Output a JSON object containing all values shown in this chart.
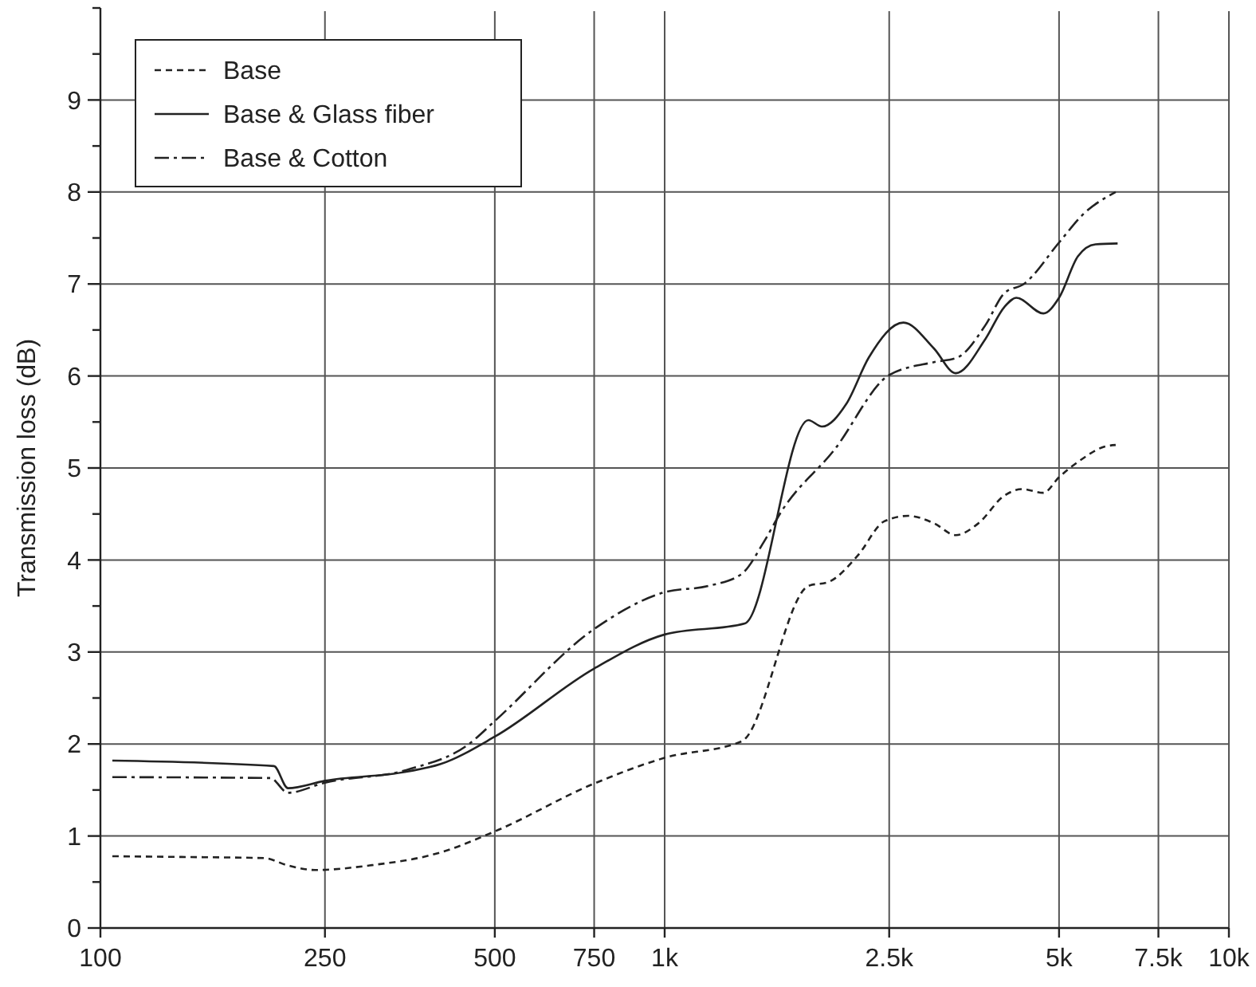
{
  "chart_data": {
    "type": "line",
    "ylabel": "Transmission loss (dB)",
    "log": "x",
    "grid": true,
    "legend": "top left",
    "xlim": [
      100,
      10000
    ],
    "ylim": [
      0,
      10
    ],
    "xticks": [
      100,
      250,
      500,
      750,
      {
        "value": 1000,
        "label": "1k"
      },
      {
        "value": 2500,
        "label": "2.5k"
      },
      {
        "value": 5000,
        "label": "5k"
      },
      {
        "value": 7500,
        "label": "7.5k"
      },
      {
        "value": 10000,
        "label": "10k"
      }
    ],
    "yticks": [
      0,
      {
        "value": 0.5,
        "label": null
      },
      1,
      {
        "value": 1.5,
        "label": null
      },
      2,
      {
        "value": 2.5,
        "label": null
      },
      3,
      {
        "value": 3.5,
        "label": null
      },
      4,
      {
        "value": 4.5,
        "label": null
      },
      5,
      {
        "value": 5.5,
        "label": null
      },
      6,
      {
        "value": 6.5,
        "label": null
      },
      7,
      {
        "value": 7.5,
        "label": null
      },
      8,
      {
        "value": 8.5,
        "label": null
      },
      9,
      {
        "value": 9.5,
        "label": null
      },
      {
        "value": 10,
        "label": null
      }
    ],
    "series": [
      {
        "name": "Base",
        "color": "#222222",
        "line_style": "dashed",
        "x": [
          105,
          150,
          195,
          215,
          240,
          300,
          400,
          500,
          750,
          1000,
          1370,
          1800,
          1950,
          2200,
          2450,
          2700,
          3000,
          3280,
          3600,
          4000,
          4300,
          4690,
          5000,
          5500,
          6000,
          6300
        ],
        "values": [
          0.78,
          0.77,
          0.76,
          0.68,
          0.63,
          0.68,
          0.82,
          1.05,
          1.57,
          1.85,
          2.03,
          3.72,
          3.76,
          4.05,
          4.42,
          4.48,
          4.4,
          4.27,
          4.4,
          4.7,
          4.77,
          4.73,
          4.9,
          5.1,
          5.23,
          5.25
        ]
      },
      {
        "name": "Base & Glass fiber",
        "color": "#222222",
        "line_style": "solid",
        "x": [
          105,
          203,
          215,
          250,
          350,
          400,
          500,
          750,
          1000,
          1387,
          1798,
          1900,
          2100,
          2300,
          2650,
          3000,
          3280,
          3700,
          4000,
          4200,
          4690,
          5000,
          5400,
          5800,
          6350
        ],
        "values": [
          1.82,
          1.76,
          1.52,
          1.6,
          1.7,
          1.78,
          2.08,
          2.82,
          3.19,
          3.31,
          5.52,
          5.45,
          5.7,
          6.2,
          6.58,
          6.3,
          6.03,
          6.4,
          6.75,
          6.85,
          6.68,
          6.85,
          7.3,
          7.43,
          7.44
        ]
      },
      {
        "name": "Base & Cotton",
        "color": "#222222",
        "line_style": "dashdot",
        "x": [
          105,
          200,
          215,
          250,
          350,
          450,
          500,
          750,
          1000,
          1200,
          1370,
          1500,
          1600,
          2000,
          2500,
          3000,
          3300,
          3700,
          4000,
          4330,
          5000,
          5500,
          6300
        ],
        "values": [
          1.64,
          1.63,
          1.47,
          1.58,
          1.72,
          2.0,
          2.25,
          3.25,
          3.65,
          3.72,
          3.85,
          4.2,
          4.5,
          5.2,
          6.01,
          6.15,
          6.2,
          6.55,
          6.9,
          7.0,
          7.45,
          7.75,
          8.0
        ]
      }
    ]
  }
}
